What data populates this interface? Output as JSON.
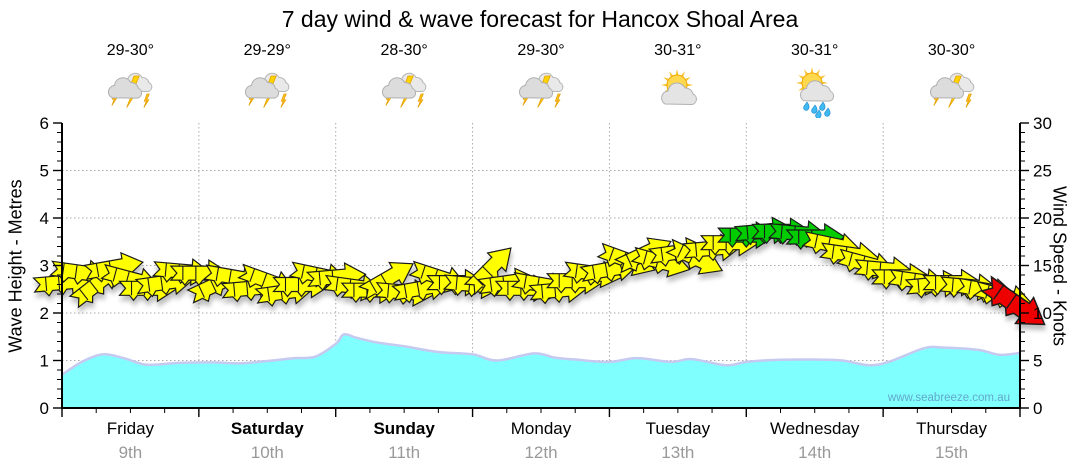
{
  "title": "7 day wind & wave forecast for Hancox Shoal Area",
  "watermark": "www.seabreeze.com.au",
  "colors": {
    "yellow": "#FFFF00",
    "green": "#00CC00",
    "red": "#EE0000",
    "arrow_outline": "#1a1a1a",
    "wave_fill": "#80FFFF",
    "wave_stroke": "#C6C9F0",
    "grid": "#AAAAAA",
    "axis": "#000000",
    "date_text": "#999999",
    "watermark_text": "#62A8C8"
  },
  "day_headers": [
    {
      "temp": "29-30°",
      "icon": "storm-icon"
    },
    {
      "temp": "29-29°",
      "icon": "storm-icon"
    },
    {
      "temp": "28-30°",
      "icon": "storm-icon"
    },
    {
      "temp": "29-30°",
      "icon": "storm-icon"
    },
    {
      "temp": "30-31°",
      "icon": "sun-cloud-icon"
    },
    {
      "temp": "30-31°",
      "icon": "sun-cloud-rain-icon"
    },
    {
      "temp": "30-30°",
      "icon": "storm-icon"
    }
  ],
  "chart_data": {
    "type": "area+wind-arrows",
    "x_days": [
      {
        "name": "Friday",
        "date": "9th",
        "bold": false
      },
      {
        "name": "Saturday",
        "date": "10th",
        "bold": true
      },
      {
        "name": "Sunday",
        "date": "11th",
        "bold": true
      },
      {
        "name": "Monday",
        "date": "12th",
        "bold": false
      },
      {
        "name": "Tuesday",
        "date": "13th",
        "bold": false
      },
      {
        "name": "Wednesday",
        "date": "14th",
        "bold": false
      },
      {
        "name": "Thursday",
        "date": "15th",
        "bold": false
      }
    ],
    "left_axis": {
      "label": "Wave Height - Metres",
      "min": 0,
      "max": 6,
      "major_ticks": [
        0,
        1,
        2,
        3,
        4,
        5,
        6
      ],
      "minor_step": 0.2
    },
    "right_axis": {
      "label": "Wind Speed - Knots",
      "min": 0,
      "max": 30,
      "major_ticks": [
        0,
        5,
        10,
        15,
        20,
        25,
        30
      ],
      "minor_step": 1
    },
    "grid": {
      "h_lines_m": [
        1,
        2,
        3,
        4,
        5
      ],
      "v_lines_at_day_boundaries": [
        1,
        2,
        3,
        4,
        5,
        6
      ]
    },
    "wave_series": {
      "name": "Wave Height",
      "units": "m",
      "legend": "none",
      "points": [
        [
          0,
          0.7
        ],
        [
          0.15,
          0.98
        ],
        [
          0.3,
          1.13
        ],
        [
          0.45,
          1.05
        ],
        [
          0.62,
          0.91
        ],
        [
          0.85,
          0.95
        ],
        [
          1.1,
          0.96
        ],
        [
          1.3,
          0.94
        ],
        [
          1.5,
          0.99
        ],
        [
          1.7,
          1.05
        ],
        [
          1.85,
          1.08
        ],
        [
          2.0,
          1.35
        ],
        [
          2.06,
          1.55
        ],
        [
          2.15,
          1.48
        ],
        [
          2.3,
          1.38
        ],
        [
          2.5,
          1.3
        ],
        [
          2.75,
          1.18
        ],
        [
          3.0,
          1.13
        ],
        [
          3.18,
          1.0
        ],
        [
          3.45,
          1.15
        ],
        [
          3.6,
          1.06
        ],
        [
          3.75,
          1.02
        ],
        [
          4.0,
          0.97
        ],
        [
          4.2,
          1.05
        ],
        [
          4.45,
          0.97
        ],
        [
          4.6,
          1.03
        ],
        [
          4.85,
          0.9
        ],
        [
          5.0,
          0.97
        ],
        [
          5.2,
          1.01
        ],
        [
          5.5,
          1.02
        ],
        [
          5.7,
          1.0
        ],
        [
          5.9,
          0.9
        ],
        [
          6.05,
          0.98
        ],
        [
          6.3,
          1.26
        ],
        [
          6.45,
          1.27
        ],
        [
          6.7,
          1.22
        ],
        [
          6.85,
          1.12
        ],
        [
          7.0,
          1.16
        ]
      ]
    },
    "wind_arrows": {
      "units": "knots",
      "format": "[day_t, knots, direction_deg, color]",
      "points": [
        [
          0.0,
          13.2,
          5,
          "y"
        ],
        [
          0.125,
          14.3,
          -8,
          "y"
        ],
        [
          0.25,
          13.0,
          38,
          "y"
        ],
        [
          0.375,
          14.8,
          10,
          "y"
        ],
        [
          0.5,
          13.6,
          -15,
          "y"
        ],
        [
          0.625,
          12.6,
          0,
          "y"
        ],
        [
          0.75,
          13.2,
          8,
          "y"
        ],
        [
          0.875,
          14.4,
          -5,
          "y"
        ],
        [
          1.0,
          14.2,
          0,
          "y"
        ],
        [
          1.125,
          13.0,
          25,
          "y"
        ],
        [
          1.25,
          13.8,
          -10,
          "y"
        ],
        [
          1.375,
          12.6,
          5,
          "y"
        ],
        [
          1.5,
          13.4,
          -20,
          "y"
        ],
        [
          1.625,
          12.2,
          8,
          "y"
        ],
        [
          1.75,
          13.0,
          0,
          "y"
        ],
        [
          1.875,
          14.0,
          -12,
          "y"
        ],
        [
          2.0,
          13.8,
          5,
          "y"
        ],
        [
          2.125,
          12.8,
          -8,
          "y"
        ],
        [
          2.25,
          12.4,
          0,
          "y"
        ],
        [
          2.375,
          13.6,
          30,
          "y"
        ],
        [
          2.5,
          12.2,
          -5,
          "y"
        ],
        [
          2.625,
          12.6,
          10,
          "y"
        ],
        [
          2.75,
          13.8,
          -18,
          "y"
        ],
        [
          2.875,
          13.2,
          0,
          "y"
        ],
        [
          3.0,
          13.0,
          -5,
          "y"
        ],
        [
          3.125,
          14.6,
          45,
          "y"
        ],
        [
          3.25,
          13.2,
          8,
          "y"
        ],
        [
          3.375,
          12.6,
          0,
          "y"
        ],
        [
          3.5,
          13.0,
          -10,
          "y"
        ],
        [
          3.625,
          12.4,
          5,
          "y"
        ],
        [
          3.75,
          13.4,
          0,
          "y"
        ],
        [
          3.875,
          14.2,
          -8,
          "y"
        ],
        [
          4.0,
          14.6,
          10,
          "y"
        ],
        [
          4.125,
          15.6,
          -20,
          "y"
        ],
        [
          4.25,
          16.2,
          25,
          "y"
        ],
        [
          4.375,
          15.4,
          -15,
          "y"
        ],
        [
          4.5,
          16.4,
          8,
          "y"
        ],
        [
          4.625,
          15.8,
          -25,
          "y"
        ],
        [
          4.75,
          16.8,
          5,
          "y"
        ],
        [
          4.875,
          17.4,
          0,
          "y"
        ],
        [
          5.0,
          18.2,
          0,
          "g"
        ],
        [
          5.125,
          18.6,
          5,
          "g"
        ],
        [
          5.25,
          18.6,
          0,
          "g"
        ],
        [
          5.375,
          18.4,
          -5,
          "g"
        ],
        [
          5.5,
          18.0,
          0,
          "g"
        ],
        [
          5.625,
          17.2,
          -12,
          "y"
        ],
        [
          5.75,
          16.2,
          -8,
          "y"
        ],
        [
          5.875,
          15.2,
          -15,
          "y"
        ],
        [
          6.0,
          14.6,
          -5,
          "y"
        ],
        [
          6.125,
          13.8,
          0,
          "y"
        ],
        [
          6.25,
          13.4,
          -8,
          "y"
        ],
        [
          6.375,
          13.0,
          5,
          "y"
        ],
        [
          6.5,
          13.2,
          0,
          "y"
        ],
        [
          6.625,
          12.8,
          -5,
          "y"
        ],
        [
          6.75,
          12.4,
          -10,
          "y"
        ],
        [
          6.875,
          11.8,
          -15,
          "y"
        ],
        [
          6.96,
          11.0,
          -35,
          "r"
        ]
      ]
    }
  }
}
